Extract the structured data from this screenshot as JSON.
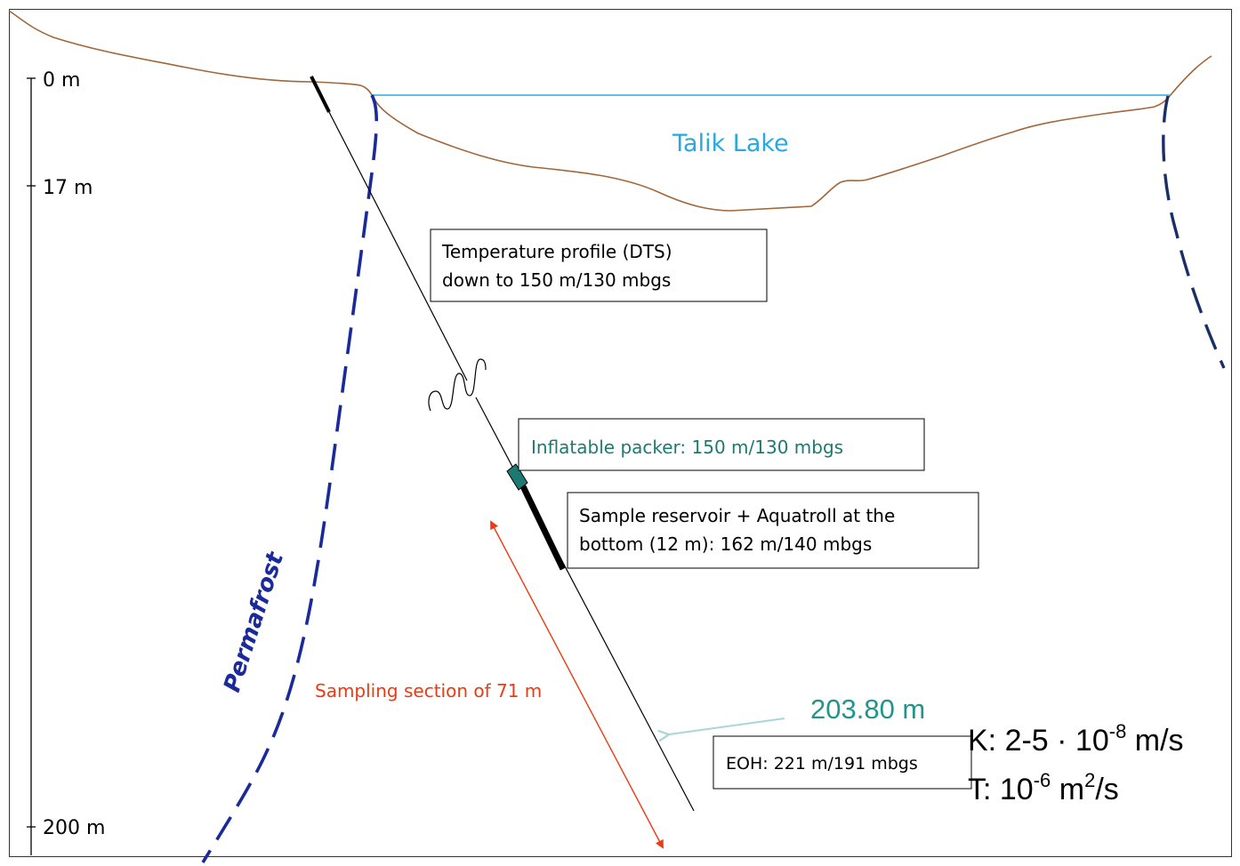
{
  "depth_axis": {
    "ticks": [
      "0 m",
      "17 m",
      "200 m"
    ]
  },
  "labels": {
    "lake": "Talik Lake",
    "permafrost": "Permafrost",
    "sampling_section": "Sampling section of 71 m",
    "borehole_length": "203.80 m"
  },
  "callouts": {
    "dts": [
      "Temperature profile (DTS)",
      "down to 150 m/130 mbgs"
    ],
    "packer": "Inflatable packer: 150 m/130 mbgs",
    "reservoir": [
      "Sample reservoir + Aquatroll at the",
      "bottom (12 m): 162 m/140 mbgs"
    ],
    "eoh": "EOH: 221 m/191 mbgs"
  },
  "parameters": {
    "k": {
      "prefix": "K: 2-5 · 10",
      "exponent": "-8",
      "suffix": " m/s"
    },
    "t": {
      "prefix": "T: 10",
      "exponent": "-6",
      "middle": " m",
      "exponent2": "2",
      "suffix": "/s"
    }
  },
  "colors": {
    "ground": "#a0673a",
    "lake": "#29a8e0",
    "permafrost": "#1a2a9a",
    "permafrost_right": "#1a2f66",
    "packer": "#1c7a72",
    "sampling": "#ee3a12",
    "borehole_arrow": "#a9d5db",
    "borehole_length_text": "#23948c"
  }
}
